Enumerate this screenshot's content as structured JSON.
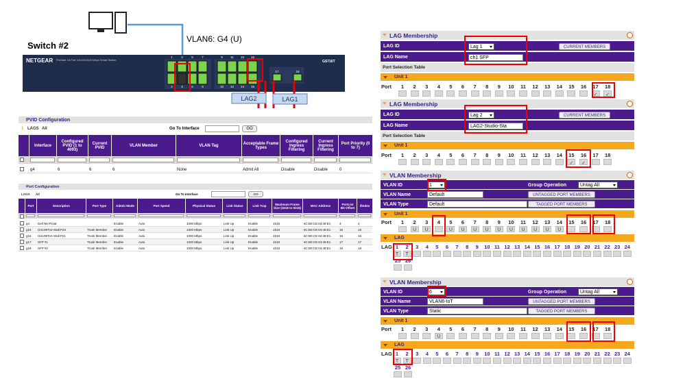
{
  "diagram": {
    "switch_label": "Switch #2",
    "vlan_label": "VLAN6: G4 (U)",
    "brand": "NETGEAR",
    "model_text": "ProSafe 16 Port 10/100/1000 Mbps Smart Switch",
    "model": "GS716T",
    "ports_top": [
      1,
      3,
      5,
      7,
      9,
      11,
      13,
      15
    ],
    "ports_bottom": [
      2,
      4,
      6,
      8,
      10,
      12,
      14,
      16
    ],
    "sfp_ports": [
      17,
      18
    ],
    "lag_labels": [
      "LAG2",
      "LAG1"
    ]
  },
  "pvid_table": {
    "title": "PVID Configuration",
    "unit": "1",
    "lags": "LAGS",
    "all": "All",
    "goto": "Go To Interface",
    "go": "GO",
    "headers": [
      "Interface",
      "Configured PVID (1 to 4093)",
      "Current PVID",
      "VLAN Member",
      "VLAN Tag",
      "Acceptable Frame Types",
      "Configured Ingress Filtering",
      "Current Ingress Filtering",
      "Port Priority (0 to 7)"
    ],
    "rows": [
      [
        "g4",
        "6",
        "6",
        "6",
        "None",
        "Admit All",
        "Disable",
        "Disable",
        "0"
      ]
    ]
  },
  "port_table": {
    "title": "Port Configuration",
    "lags": "LAGS",
    "all": "All",
    "goto": "Go To Interface",
    "go": "GO",
    "headers": [
      "Port",
      "Description",
      "Port Type",
      "Admin Mode",
      "Port Speed",
      "Physical Status",
      "Link Status",
      "Link Trap",
      "Maximum Frame Size (1518 to 9216)",
      "MAC Address",
      "PortList Bit Offset",
      "ifIndex"
    ],
    "rows": [
      [
        "g4",
        "Dell N6 Privat",
        null,
        "Enable",
        "Auto",
        "1000 Mbps",
        "Link Up",
        "Enable",
        "1518",
        "6C:B0:CE:04:48:E1",
        "4",
        "4"
      ],
      [
        "g15",
        "GS108Tv2-Stall P23",
        "Trunk Member",
        "Enable",
        "Auto",
        "1000 Mbps",
        "Link Up",
        "Enable",
        "1518",
        "6C:B0:CE:04:48:E1",
        "15",
        "15"
      ],
      [
        "g16",
        "GS108Tv2-Stall P21",
        "Trunk Member",
        "Enable",
        "Auto",
        "1000 Mbps",
        "Link Up",
        "Enable",
        "1518",
        "6C:B0:CE:04:48:E1",
        "16",
        "16"
      ],
      [
        "g17",
        "SFP #1",
        "Trunk Member",
        "Enable",
        "Auto",
        "1000 Mbps",
        "Link Up",
        "Enable",
        "1518",
        "6C:B0:CE:04:48:E1",
        "17",
        "17"
      ],
      [
        "g18",
        "SFP #2",
        "Trunk Member",
        "Enable",
        "Auto",
        "1000 Mbps",
        "Link Up",
        "Enable",
        "1518",
        "6C:B0:CE:04:48:E1",
        "18",
        "18"
      ]
    ]
  },
  "panels": [
    {
      "kind": "lag",
      "title": "LAG Membership",
      "lag_id_label": "LAG ID",
      "lag_id": "Lag 1",
      "lag_name_label": "LAG Name",
      "lag_name": "ch1 SFP",
      "button": "CURRENT MEMBERS",
      "table_label": "Port Selection Table",
      "unit": "Unit 1",
      "port_label": "Port",
      "ports": [
        1,
        2,
        3,
        4,
        5,
        6,
        7,
        8,
        9,
        10,
        11,
        12,
        13,
        14,
        15,
        16,
        17,
        18
      ],
      "marks": [
        null,
        null,
        null,
        null,
        null,
        null,
        null,
        null,
        null,
        null,
        null,
        null,
        null,
        null,
        null,
        null,
        "✓",
        "✓"
      ]
    },
    {
      "kind": "lag",
      "title": "LAG Membership",
      "lag_id_label": "LAG ID",
      "lag_id": "Lag 2",
      "lag_name_label": "LAG Name",
      "lag_name": "LAG2-Studio-Sta",
      "button": "CURRENT MEMBERS",
      "table_label": "Port Selection Table",
      "unit": "Unit 1",
      "port_label": "Port",
      "ports": [
        1,
        2,
        3,
        4,
        5,
        6,
        7,
        8,
        9,
        10,
        11,
        12,
        13,
        14,
        15,
        16,
        17,
        18
      ],
      "marks": [
        null,
        null,
        null,
        null,
        null,
        null,
        null,
        null,
        null,
        null,
        null,
        null,
        null,
        null,
        "✓",
        "✓",
        null,
        null
      ]
    },
    {
      "kind": "vlan",
      "title": "VLAN Membership",
      "vlan_id_label": "VLAN ID",
      "vlan_id": "1",
      "group_label": "Group Operation",
      "group": "Untag All",
      "name_label": "VLAN Name",
      "name": "Default",
      "type_label": "VLAN Type",
      "type": "Default",
      "untagged_button": "UNTAGGED PORT MEMBERS",
      "tagged_button": "TAGGED PORT MEMBERS",
      "unit": "Unit 1",
      "port_label": "Port",
      "ports": [
        1,
        2,
        3,
        4,
        5,
        6,
        7,
        8,
        9,
        10,
        11,
        12,
        13,
        14,
        15,
        16,
        17,
        18
      ],
      "marks": [
        null,
        "U",
        "U",
        null,
        "U",
        "U",
        "U",
        "U",
        "U",
        "U",
        "U",
        "U",
        "U",
        "U",
        null,
        null,
        null,
        null
      ],
      "lag_section": "LAG",
      "lag_row_label": "LAG",
      "lags": [
        1,
        2,
        3,
        4,
        5,
        6,
        7,
        8,
        9,
        10,
        11,
        12,
        13,
        14,
        15,
        16,
        17,
        18,
        19,
        20,
        21,
        22,
        23,
        24,
        25,
        26
      ],
      "lag_marks": [
        "T",
        "T",
        null,
        null,
        null,
        null,
        null,
        null,
        null,
        null,
        null,
        null,
        null,
        null,
        null,
        null,
        null,
        null,
        null,
        null,
        null,
        null,
        null,
        null,
        null,
        null
      ]
    },
    {
      "kind": "vlan",
      "title": "VLAN Membership",
      "vlan_id_label": "VLAN ID",
      "vlan_id": "6",
      "group_label": "Group Operation",
      "group": "Untag All",
      "name_label": "VLAN Name",
      "name": "VLAN6-IoT",
      "type_label": "VLAN Type",
      "type": "Static",
      "untagged_button": "UNTAGGED PORT MEMBERS",
      "tagged_button": "TAGGED PORT MEMBERS",
      "unit": "Unit 1",
      "port_label": "Port",
      "ports": [
        1,
        2,
        3,
        4,
        5,
        6,
        7,
        8,
        9,
        10,
        11,
        12,
        13,
        14,
        15,
        16,
        17,
        18
      ],
      "marks": [
        null,
        null,
        null,
        "U",
        null,
        null,
        null,
        null,
        null,
        null,
        null,
        null,
        null,
        null,
        null,
        null,
        null,
        null
      ],
      "lag_section": "LAG",
      "lag_row_label": "LAG",
      "lags": [
        1,
        2,
        3,
        4,
        5,
        6,
        7,
        8,
        9,
        10,
        11,
        12,
        13,
        14,
        15,
        16,
        17,
        18,
        19,
        20,
        21,
        22,
        23,
        24,
        25,
        26
      ],
      "lag_marks": [
        "T",
        "T",
        null,
        null,
        null,
        null,
        null,
        null,
        null,
        null,
        null,
        null,
        null,
        null,
        null,
        null,
        null,
        null,
        null,
        null,
        null,
        null,
        null,
        null,
        null,
        null
      ]
    }
  ]
}
